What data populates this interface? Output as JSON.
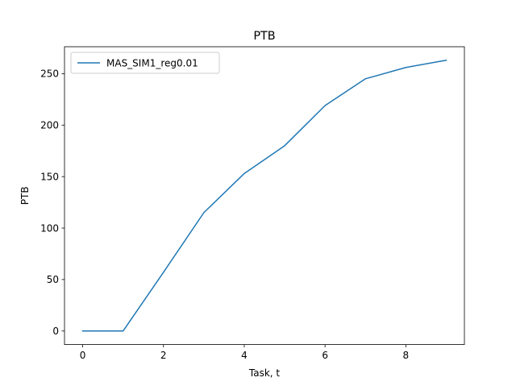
{
  "chart_data": {
    "type": "line",
    "title": "PTB",
    "xlabel": "Task, t",
    "ylabel": "PTB",
    "x": [
      0,
      1,
      2,
      3,
      4,
      5,
      6,
      7,
      8,
      9
    ],
    "series": [
      {
        "name": "MAS_SIM1_reg0.01",
        "values": [
          0,
          0,
          57,
          115,
          153,
          180,
          219,
          245,
          256,
          263
        ],
        "color": "#1f77b4"
      }
    ],
    "xlim": [
      -0.45,
      9.45
    ],
    "ylim": [
      -13.15,
      276.15
    ],
    "xticks": [
      0,
      2,
      4,
      6,
      8
    ],
    "yticks": [
      0,
      50,
      100,
      150,
      200,
      250
    ],
    "grid": false,
    "legend_position": "upper left"
  }
}
